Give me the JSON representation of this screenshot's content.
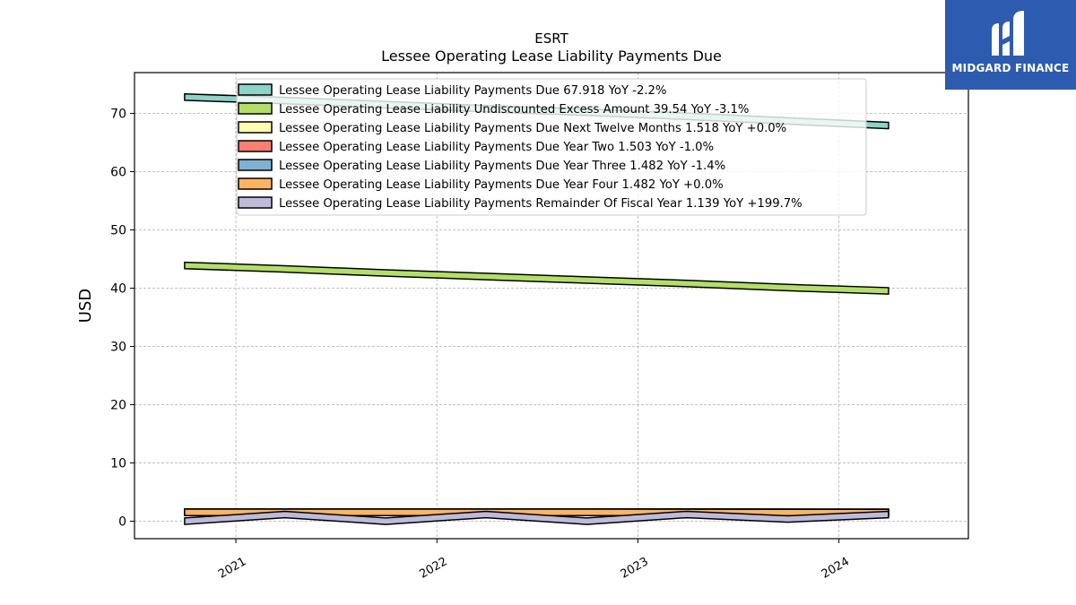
{
  "ticker": "ESRT",
  "brand": {
    "name": "MIDGARD FINANCE",
    "bg_color": "#2d5bb0",
    "mark_icon": "midgard-m-logo-icon"
  },
  "chart_data": {
    "type": "area",
    "title": "ESRT",
    "subtitle": "Lessee Operating Lease Liability Payments Due",
    "ylabel": "USD",
    "xlabel": "",
    "ylim": [
      -3,
      77
    ],
    "xlim": [
      "2020-07-01",
      "2024-08-23"
    ],
    "yticks": [
      0,
      10,
      20,
      30,
      40,
      50,
      60,
      70
    ],
    "xticks": [
      {
        "date": "2021-01-01",
        "label": "2021"
      },
      {
        "date": "2022-01-01",
        "label": "2022"
      },
      {
        "date": "2023-01-01",
        "label": "2023"
      },
      {
        "date": "2024-01-01",
        "label": "2024"
      }
    ],
    "grid": true,
    "legend_position": "top",
    "x": [
      "2020-09-30",
      "2021-03-31",
      "2021-09-30",
      "2022-03-31",
      "2022-09-30",
      "2023-03-31",
      "2023-09-30",
      "2024-03-31"
    ],
    "series": [
      {
        "name": "Lessee Operating Lease Liability Payments Due",
        "legend": "Lessee Operating Lease Liability Payments Due  67.918 YoY -2.2%",
        "color": "#8dd3c7",
        "values": [
          72.8,
          72.2,
          71.5,
          70.8,
          70.2,
          69.5,
          68.7,
          67.918
        ]
      },
      {
        "name": "Lessee Operating Lease Liability Undiscounted Excess Amount",
        "legend": "Lessee Operating Lease Liability Undiscounted Excess Amount  39.54 YoY -3.1%",
        "color": "#b3de69",
        "values": [
          43.9,
          43.3,
          42.6,
          42.0,
          41.4,
          40.8,
          40.1,
          39.54
        ]
      },
      {
        "name": "Lessee Operating Lease Liability Payments Due Next Twelve Months",
        "legend": "Lessee Operating Lease Liability Payments Due Next Twelve Months  1.518 YoY +0.0%",
        "color": "#ffffb3",
        "values": [
          1.55,
          1.55,
          1.55,
          1.55,
          1.55,
          1.55,
          1.518,
          1.518
        ]
      },
      {
        "name": "Lessee Operating Lease Liability Payments Due Year Two",
        "legend": "Lessee Operating Lease Liability Payments Due Year Two  1.503 YoY -1.0%",
        "color": "#fb8072",
        "values": [
          1.52,
          1.52,
          1.52,
          1.52,
          1.52,
          1.518,
          1.518,
          1.503
        ]
      },
      {
        "name": "Lessee Operating Lease Liability Payments Due Year Three",
        "legend": "Lessee Operating Lease Liability Payments Due Year Three  1.482 YoY -1.4%",
        "color": "#80b1d3",
        "values": [
          1.52,
          1.52,
          1.52,
          1.52,
          1.518,
          1.518,
          1.503,
          1.482
        ]
      },
      {
        "name": "Lessee Operating Lease Liability Payments Due Year Four",
        "legend": "Lessee Operating Lease Liability Payments Due Year Four  1.482 YoY +0.0%",
        "color": "#fdb462",
        "values": [
          1.52,
          1.52,
          1.52,
          1.52,
          1.518,
          1.503,
          1.482,
          1.482
        ]
      },
      {
        "name": "Lessee Operating Lease Liability Payments Remainder Of Fiscal Year",
        "legend": "Lessee Operating Lease Liability Payments Remainder Of Fiscal Year  1.139 YoY +199.7%",
        "color": "#bebada",
        "values": [
          0.0,
          1.15,
          0.0,
          1.15,
          0.0,
          1.15,
          0.38,
          1.139
        ]
      }
    ]
  }
}
